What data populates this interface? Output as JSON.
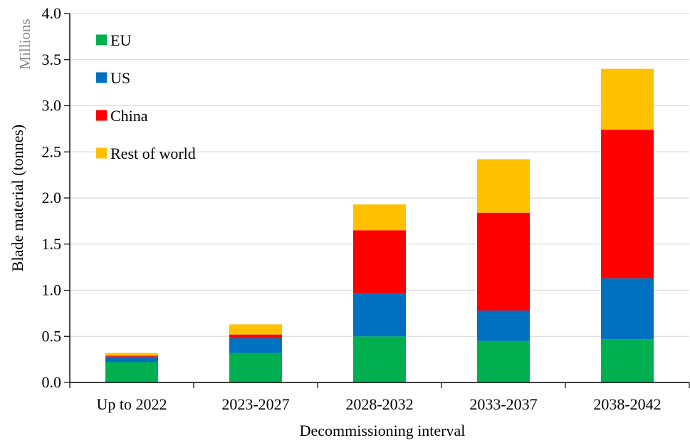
{
  "chart_data": {
    "type": "bar",
    "stacked": true,
    "categories": [
      "Up to 2022",
      "2023-2027",
      "2028-2032",
      "2033-2037",
      "2038-2042"
    ],
    "series": [
      {
        "name": "EU",
        "color": "#00b050",
        "values": [
          0.22,
          0.32,
          0.5,
          0.45,
          0.47
        ]
      },
      {
        "name": "US",
        "color": "#0070c0",
        "values": [
          0.06,
          0.16,
          0.46,
          0.33,
          0.66
        ]
      },
      {
        "name": "China",
        "color": "#ff0000",
        "values": [
          0.01,
          0.04,
          0.69,
          1.06,
          1.61
        ]
      },
      {
        "name": "Rest of world",
        "color": "#ffc000",
        "values": [
          0.03,
          0.11,
          0.28,
          0.58,
          0.66
        ]
      }
    ],
    "xlabel": "Decommissioning interval",
    "ylabel": "Blade material (tonnes)",
    "yunits": "Millions",
    "ylim": [
      0,
      4.0
    ],
    "yticks": [
      "0.0",
      "0.5",
      "1.0",
      "1.5",
      "2.0",
      "2.5",
      "3.0",
      "3.5",
      "4.0"
    ],
    "grid": true,
    "legend_position": "top-left"
  }
}
